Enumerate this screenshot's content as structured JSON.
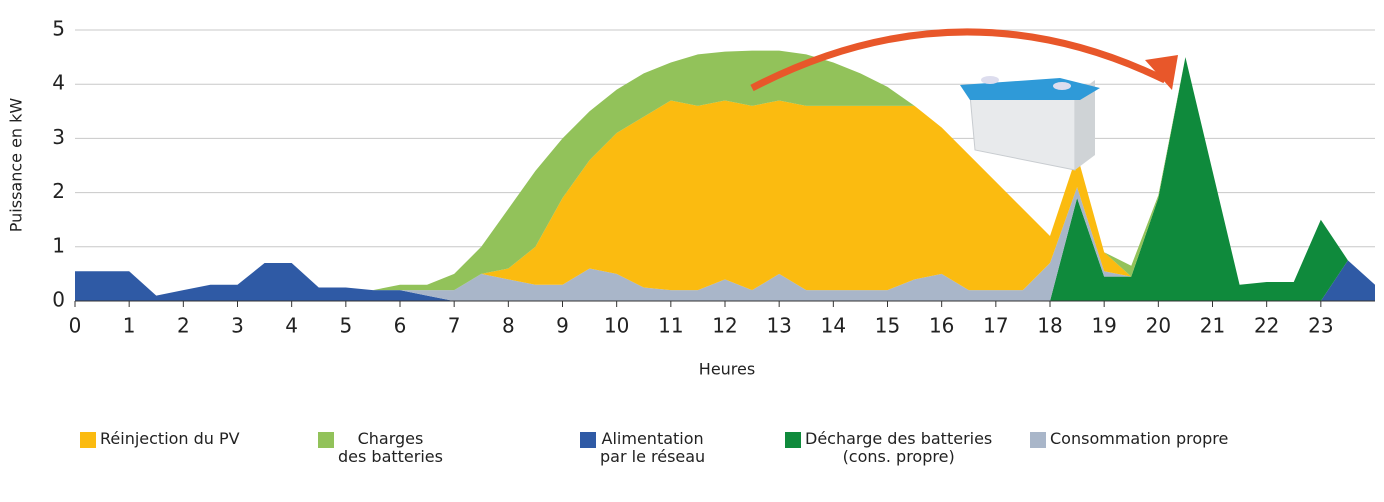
{
  "chart_data": {
    "type": "stacked-area",
    "xlabel": "Heures",
    "ylabel": "Puissance en kW",
    "xlim": [
      0,
      24
    ],
    "ylim": [
      0,
      5
    ],
    "xticks": [
      0,
      1,
      2,
      3,
      4,
      5,
      6,
      7,
      8,
      9,
      10,
      11,
      12,
      13,
      14,
      15,
      16,
      17,
      18,
      19,
      20,
      21,
      22,
      23
    ],
    "yticks": [
      0,
      1,
      2,
      3,
      4,
      5
    ],
    "grid": true,
    "x": [
      0,
      0.5,
      1,
      1.5,
      2,
      2.5,
      3,
      3.5,
      4,
      4.5,
      5,
      5.5,
      6,
      6.5,
      7,
      7.5,
      8,
      8.5,
      9,
      9.5,
      10,
      10.5,
      11,
      11.5,
      12,
      12.5,
      13,
      13.5,
      14,
      14.5,
      15,
      15.5,
      16,
      16.5,
      17,
      17.5,
      18,
      18.5,
      19,
      19.5,
      20,
      20.5,
      21,
      21.5,
      22,
      22.5,
      23,
      23.5,
      24
    ],
    "series": [
      {
        "name": "Alimentation\npar le réseau",
        "color": "#2f5aa5",
        "values": [
          0.55,
          0.55,
          0.55,
          0.1,
          0.2,
          0.3,
          0.3,
          0.7,
          0.7,
          0.25,
          0.25,
          0.2,
          0.2,
          0.1,
          0,
          0,
          0,
          0,
          0,
          0,
          0,
          0,
          0,
          0,
          0,
          0,
          0,
          0,
          0,
          0,
          0,
          0,
          0,
          0,
          0,
          0,
          0,
          0,
          0,
          0,
          0,
          0,
          0,
          0,
          0,
          0,
          0,
          0.75,
          0.3
        ]
      },
      {
        "name": "Décharge des batteries\n(cons. propre)",
        "color": "#0f8a3c",
        "values": [
          0,
          0,
          0,
          0,
          0,
          0,
          0,
          0,
          0,
          0,
          0,
          0,
          0,
          0,
          0,
          0,
          0,
          0,
          0,
          0,
          0,
          0,
          0,
          0,
          0,
          0,
          0,
          0,
          0,
          0,
          0,
          0,
          0,
          0,
          0,
          0,
          0,
          1.9,
          0.45,
          0.45,
          1.9,
          4.5,
          2.4,
          0.3,
          0.35,
          0.35,
          1.5,
          0,
          0
        ]
      },
      {
        "name": "Consommation propre",
        "color": "#a9b6c9",
        "values": [
          0,
          0,
          0,
          0,
          0,
          0,
          0,
          0,
          0,
          0,
          0,
          0,
          0,
          0.1,
          0.2,
          0.5,
          0.4,
          0.3,
          0.3,
          0.6,
          0.5,
          0.25,
          0.2,
          0.2,
          0.4,
          0.2,
          0.5,
          0.2,
          0.2,
          0.2,
          0.2,
          0.4,
          0.5,
          0.2,
          0.2,
          0.2,
          0.7,
          0.2,
          0.1,
          0,
          0,
          0,
          0,
          0,
          0,
          0,
          0,
          0,
          0
        ]
      },
      {
        "name": "Réinjection du PV",
        "color": "#fbbb10",
        "values": [
          0,
          0,
          0,
          0,
          0,
          0,
          0,
          0,
          0,
          0,
          0,
          0,
          0,
          0,
          0,
          0,
          0.2,
          0.7,
          1.6,
          2,
          2.6,
          3.15,
          3.5,
          3.4,
          3.3,
          3.4,
          3.2,
          3.4,
          3.4,
          3.4,
          3.4,
          3.2,
          2.7,
          2.5,
          2,
          1.5,
          0.5,
          0.6,
          0.35,
          0,
          0,
          0,
          0,
          0,
          0,
          0,
          0,
          0,
          0
        ]
      },
      {
        "name": "Charges\ndes batteries",
        "color": "#92c25a",
        "values": [
          0,
          0,
          0,
          0,
          0,
          0,
          0,
          0,
          0,
          0,
          0,
          0,
          0.1,
          0.1,
          0.3,
          0.5,
          1.1,
          1.4,
          1.1,
          0.9,
          0.8,
          0.8,
          0.7,
          0.95,
          0.9,
          1.02,
          0.92,
          0.95,
          0.8,
          0.6,
          0.35,
          0,
          0,
          0,
          0,
          0,
          0,
          0,
          0,
          0.2,
          0.05,
          0,
          0,
          0,
          0,
          0,
          0,
          0,
          0
        ]
      }
    ],
    "legend_order": [
      3,
      4,
      0,
      1,
      2
    ]
  }
}
